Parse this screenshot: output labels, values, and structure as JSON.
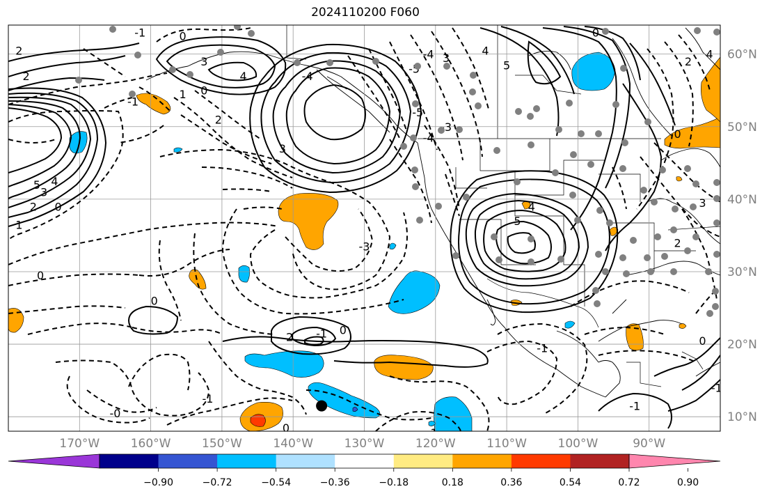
{
  "title": "2024110200 F060",
  "map": {
    "lon_range": [
      -180,
      -80
    ],
    "lat_range": [
      8,
      64
    ],
    "lon_ticks": [
      {
        "value": -170,
        "label": "170°W"
      },
      {
        "value": -160,
        "label": "160°W"
      },
      {
        "value": -150,
        "label": "150°W"
      },
      {
        "value": -140,
        "label": "140°W"
      },
      {
        "value": -130,
        "label": "130°W"
      },
      {
        "value": -120,
        "label": "120°W"
      },
      {
        "value": -110,
        "label": "110°W"
      },
      {
        "value": -100,
        "label": "100°W"
      },
      {
        "value": -90,
        "label": "90°W"
      }
    ],
    "lat_ticks": [
      {
        "value": 10,
        "label": "10°N"
      },
      {
        "value": 20,
        "label": "20°N"
      },
      {
        "value": 30,
        "label": "30°N"
      },
      {
        "value": 40,
        "label": "40°N"
      },
      {
        "value": 50,
        "label": "50°N"
      },
      {
        "value": 60,
        "label": "60°N"
      }
    ],
    "gridlines": true,
    "contour_labels": [
      {
        "text": "2",
        "lon": -178.5,
        "lat": 60.5
      },
      {
        "text": "2",
        "lon": -177.5,
        "lat": 57.0
      },
      {
        "text": "-1",
        "lon": -161.5,
        "lat": 63.0
      },
      {
        "text": "0",
        "lon": -155.5,
        "lat": 62.5
      },
      {
        "text": "3",
        "lon": -152.5,
        "lat": 59.0
      },
      {
        "text": "4",
        "lon": -147.0,
        "lat": 57.0
      },
      {
        "text": "1",
        "lon": -155.5,
        "lat": 54.5
      },
      {
        "text": "0",
        "lon": -152.5,
        "lat": 55.0
      },
      {
        "text": "-1",
        "lon": -162.5,
        "lat": 53.5
      },
      {
        "text": "2",
        "lon": -150.5,
        "lat": 51.0
      },
      {
        "text": "3",
        "lon": -141.5,
        "lat": 47.0
      },
      {
        "text": "-4",
        "lon": -138.0,
        "lat": 57.0
      },
      {
        "text": "3",
        "lon": -118.5,
        "lat": 59.5
      },
      {
        "text": "-4",
        "lon": -121.0,
        "lat": 60.0
      },
      {
        "text": "-5",
        "lon": -123.0,
        "lat": 58.0
      },
      {
        "text": "-5",
        "lon": -122.5,
        "lat": 52.0
      },
      {
        "text": "-3",
        "lon": -118.5,
        "lat": 50.0
      },
      {
        "text": "-4",
        "lon": -121.0,
        "lat": 48.5
      },
      {
        "text": "5",
        "lon": -176.0,
        "lat": 42.0
      },
      {
        "text": "4",
        "lon": -173.5,
        "lat": 42.5
      },
      {
        "text": "3",
        "lon": -175.0,
        "lat": 41.0
      },
      {
        "text": "2",
        "lon": -176.5,
        "lat": 39.0
      },
      {
        "text": "0",
        "lon": -173.0,
        "lat": 39.0
      },
      {
        "text": "1",
        "lon": -178.5,
        "lat": 36.5
      },
      {
        "text": "4",
        "lon": -113.0,
        "lat": 60.5
      },
      {
        "text": "5",
        "lon": -110.0,
        "lat": 58.5
      },
      {
        "text": "0",
        "lon": -97.5,
        "lat": 63.0
      },
      {
        "text": "2",
        "lon": -84.5,
        "lat": 59.0
      },
      {
        "text": "4",
        "lon": -81.5,
        "lat": 60.0
      },
      {
        "text": "0",
        "lon": -86.0,
        "lat": 49.0
      },
      {
        "text": "4",
        "lon": -106.5,
        "lat": 39.0
      },
      {
        "text": "5",
        "lon": -108.5,
        "lat": 37.0
      },
      {
        "text": "3",
        "lon": -82.5,
        "lat": 39.5
      },
      {
        "text": "2",
        "lon": -86.0,
        "lat": 34.0
      },
      {
        "text": "-3",
        "lon": -130.0,
        "lat": 33.5
      },
      {
        "text": "0",
        "lon": -175.5,
        "lat": 29.5
      },
      {
        "text": "0",
        "lon": -159.5,
        "lat": 26.0
      },
      {
        "text": "-1",
        "lon": -136.0,
        "lat": 21.5
      },
      {
        "text": "0",
        "lon": -133.0,
        "lat": 22.0
      },
      {
        "text": "2",
        "lon": -140.5,
        "lat": 21.0
      },
      {
        "text": "-1",
        "lon": -105.0,
        "lat": 19.5
      },
      {
        "text": "0",
        "lon": -82.5,
        "lat": 20.5
      },
      {
        "text": "-1",
        "lon": -92.0,
        "lat": 11.5
      },
      {
        "text": "-1",
        "lon": -152.0,
        "lat": 12.5
      },
      {
        "text": "-0",
        "lon": -165.0,
        "lat": 10.5
      },
      {
        "text": "0",
        "lon": -141.0,
        "lat": 8.5
      },
      {
        "text": "-1",
        "lon": -120.5,
        "lat": 7.8
      },
      {
        "text": "-1",
        "lon": -80.5,
        "lat": 14.0
      }
    ],
    "marker": {
      "lon": -136.0,
      "lat": 11.5
    }
  },
  "colorbar": {
    "colors": [
      "#9a36d8",
      "#00008b",
      "#3555d2",
      "#00bfff",
      "#afe1ff",
      "#ffffff",
      "#ffeb82",
      "#ffa500",
      "#ff3a00",
      "#b12222",
      "#ff86ae"
    ],
    "labels": [
      "−0.90",
      "−0.72",
      "−0.54",
      "−0.36",
      "−0.18",
      "0.18",
      "0.36",
      "0.54",
      "0.72",
      "0.90"
    ]
  }
}
